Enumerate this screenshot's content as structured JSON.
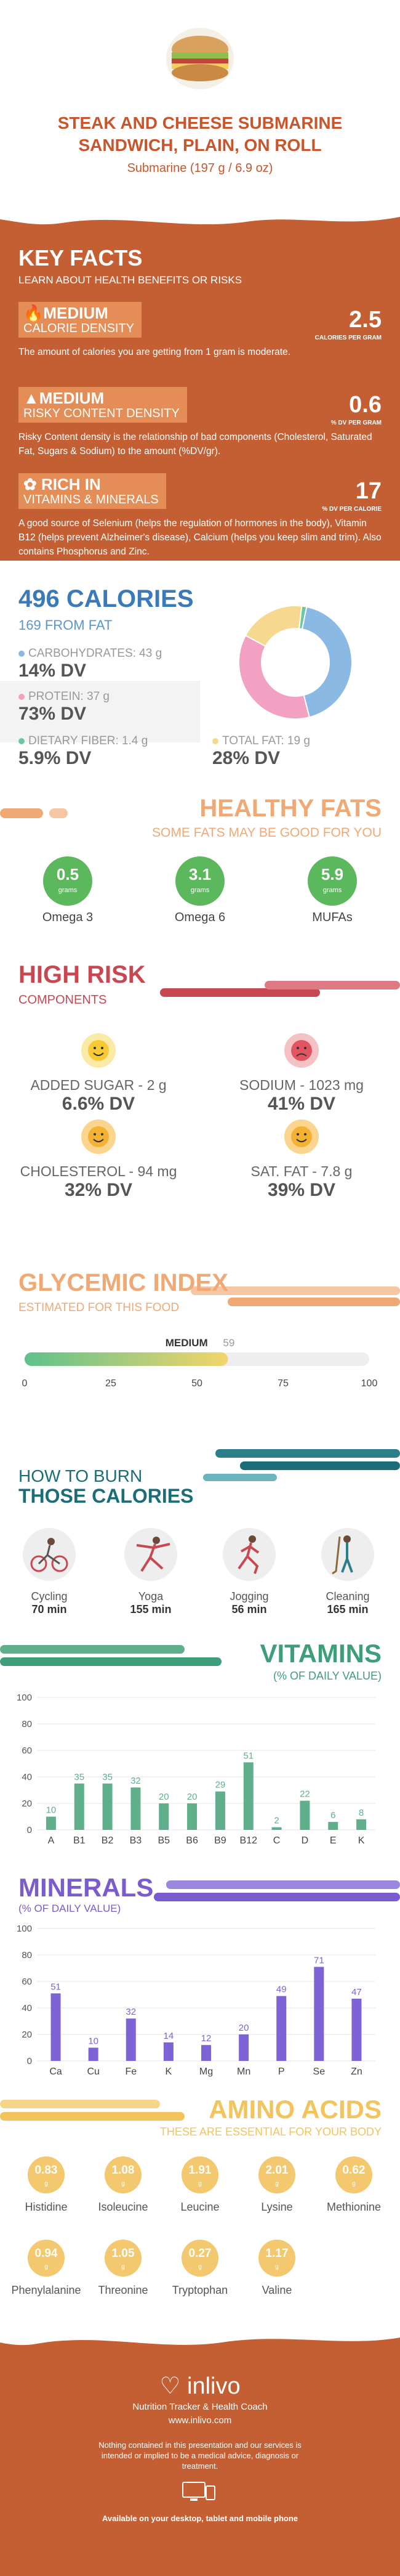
{
  "header": {
    "title_line1": "STEAK AND CHEESE SUBMARINE",
    "title_line2": "SANDWICH, PLAIN, ON ROLL",
    "subtitle": "Submarine (197 g / 6.9 oz)"
  },
  "key_facts": {
    "title": "KEY FACTS",
    "subtitle": "LEARN ABOUT HEALTH BENEFITS OR RISKS",
    "items": [
      {
        "level": "MEDIUM",
        "name": "CALORIE DENSITY",
        "value": "2.5",
        "unit": "CALORIES PER GRAM",
        "desc": "The amount of calories you are getting from 1 gram is moderate."
      },
      {
        "level": "MEDIUM",
        "name": "RISKY CONTENT DENSITY",
        "value": "0.6",
        "unit": "% DV PER GRAM",
        "desc": "Risky Content density is the relationship of bad components (Cholesterol, Saturated Fat, Sugars & Sodium) to the amount (%DV/gr)."
      },
      {
        "level": "RICH  IN",
        "name": "VITAMINS & MINERALS",
        "value": "17",
        "unit": "% DV PER CALORIE",
        "desc": "A good source of Selenium (helps the regulation of hormones in the body), Vitamin B12 (helps prevent Alzheimer's disease), Calcium (helps you keep slim and trim). Also contains Phosphorus and Zinc."
      }
    ]
  },
  "calories": {
    "title": "496 CALORIES",
    "from_fat": "169 FROM FAT",
    "carbs_label": "CARBOHYDRATES: 43 g",
    "carbs_dv": "14% DV",
    "protein_label": "PROTEIN: 37 g",
    "protein_dv": "73% DV",
    "fiber_label": "DIETARY FIBER: 1.4 g",
    "fiber_dv": "5.9% DV",
    "fat_label": "TOTAL FAT: 19 g",
    "fat_dv": "28% DV",
    "donut": [
      {
        "name": "carbohydrates",
        "value": 43,
        "color": "#8ab9e3"
      },
      {
        "name": "protein",
        "value": 37,
        "color": "#f2a1c3"
      },
      {
        "name": "fat",
        "value": 19,
        "color": "#f6d88e"
      },
      {
        "name": "fiber",
        "value": 1.4,
        "color": "#6cc7a0"
      }
    ]
  },
  "healthy_fats": {
    "title": "HEALTHY FATS",
    "subtitle": "SOME FATS MAY BE GOOD FOR YOU",
    "unit": "grams",
    "items": [
      {
        "value": "0.5",
        "name": "Omega 3"
      },
      {
        "value": "3.1",
        "name": "Omega 6"
      },
      {
        "value": "5.9",
        "name": "MUFAs"
      }
    ]
  },
  "high_risk": {
    "title": "HIGH RISK",
    "subtitle": "COMPONENTS",
    "items": [
      {
        "label": "ADDED SUGAR - 2 g",
        "dv": "6.6% DV",
        "mood": "happy"
      },
      {
        "label": "SODIUM - 1023 mg",
        "dv": "41% DV",
        "mood": "sad"
      },
      {
        "label": "CHOLESTEROL - 94 mg",
        "dv": "32% DV",
        "mood": "happy"
      },
      {
        "label": "SAT. FAT - 7.8 g",
        "dv": "39% DV",
        "mood": "happy"
      }
    ]
  },
  "glycemic": {
    "title": "GLYCEMIC INDEX",
    "subtitle": "ESTIMATED FOR THIS FOOD",
    "level": "MEDIUM",
    "value": 59,
    "value_text": "59",
    "ticks": [
      "0",
      "25",
      "50",
      "75",
      "100"
    ]
  },
  "burn": {
    "title1": "HOW TO BURN",
    "title2": "THOSE CALORIES",
    "items": [
      {
        "name": "Cycling",
        "mins": "70 min",
        "icon": "cycling-icon"
      },
      {
        "name": "Yoga",
        "mins": "155 min",
        "icon": "yoga-icon"
      },
      {
        "name": "Jogging",
        "mins": "56 min",
        "icon": "jogging-icon"
      },
      {
        "name": "Cleaning",
        "mins": "165 min",
        "icon": "cleaning-icon"
      }
    ]
  },
  "vitamins": {
    "title": "VITAMINS",
    "subtitle": "(% OF DAILY VALUE)"
  },
  "minerals": {
    "title": "MINERALS",
    "subtitle": "(% OF DAILY VALUE)"
  },
  "chart_data": [
    {
      "type": "bar",
      "categories": [
        "A",
        "B1",
        "B2",
        "B3",
        "B5",
        "B6",
        "B9",
        "B12",
        "C",
        "D",
        "E",
        "K"
      ],
      "values": [
        10,
        35,
        35,
        32,
        20,
        20,
        29,
        51,
        2,
        22,
        6,
        8
      ],
      "ylim": [
        0,
        100
      ],
      "yticks": [
        0,
        20,
        40,
        60,
        80,
        100
      ],
      "color": "#5fb08a"
    },
    {
      "type": "bar",
      "categories": [
        "Ca",
        "Cu",
        "Fe",
        "K",
        "Mg",
        "Mn",
        "P",
        "Se",
        "Zn"
      ],
      "values": [
        51,
        10,
        32,
        14,
        12,
        20,
        49,
        71,
        47
      ],
      "ylim": [
        0,
        100
      ],
      "yticks": [
        0,
        20,
        40,
        60,
        80,
        100
      ],
      "color": "#7d63d6"
    }
  ],
  "amino": {
    "title": "AMINO ACIDS",
    "subtitle": "THESE ARE ESSENTIAL FOR YOUR BODY",
    "unit": "g",
    "items": [
      {
        "value": "0.83",
        "name": "Histidine"
      },
      {
        "value": "1.08",
        "name": "Isoleucine"
      },
      {
        "value": "1.91",
        "name": "Leucine"
      },
      {
        "value": "2.01",
        "name": "Lysine"
      },
      {
        "value": "0.62",
        "name": "Methionine"
      },
      {
        "value": "0.94",
        "name": "Phenylalanine"
      },
      {
        "value": "1.05",
        "name": "Threonine"
      },
      {
        "value": "0.27",
        "name": "Tryptophan"
      },
      {
        "value": "1.17",
        "name": "Valine"
      }
    ]
  },
  "footer": {
    "brand": "inlivo",
    "tagline": "Nutrition Tracker & Health Coach",
    "url": "www.inlivo.com",
    "disclaimer": "Nothing contained in this presentation and our services is intended or implied to be a medical advice, diagnosis or treatment.",
    "available": "Available on your desktop, tablet and mobile phone"
  }
}
